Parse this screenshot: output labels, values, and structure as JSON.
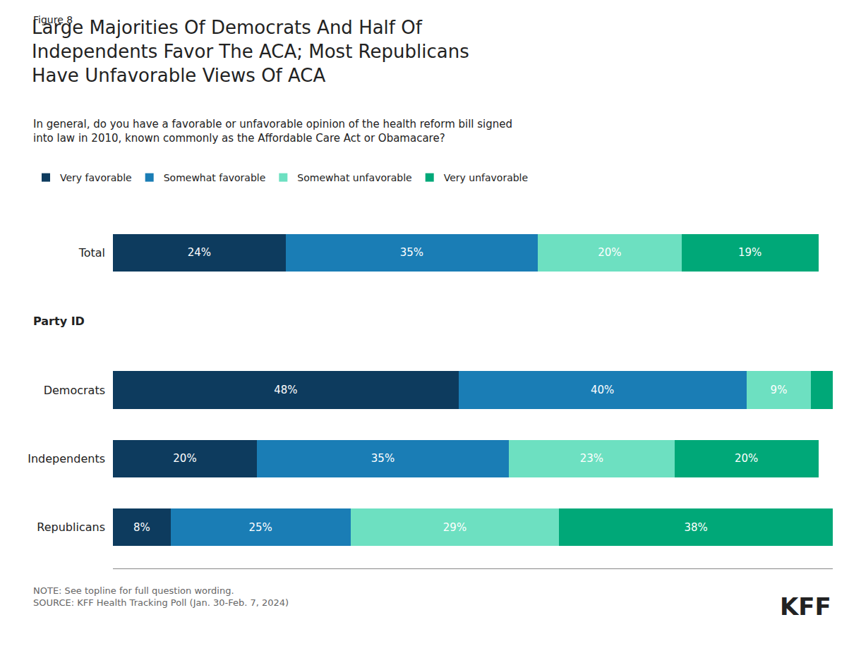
{
  "chart_data": {
    "type": "bar",
    "orientation": "horizontal",
    "stacked": true,
    "title": "Large Majorities Of Democrats And Half Of\nIndependents Favor The ACA; Most Republicans\nHave Unfavorable Views Of ACA",
    "subtitle": "In general, do you have a favorable or unfavorable opinion of the health reform bill signed\ninto law in 2010, known commonly as the Affordable Care Act or Obamacare?",
    "annotations": [
      "Figure 8",
      "Party ID",
      "NOTE: See topline for full question wording.\nSOURCE: KFF Health Tracking Poll (Jan. 30-Feb. 7, 2024)",
      "KFF"
    ],
    "categories": [
      "Total",
      "Democrats",
      "Independents",
      "Republicans"
    ],
    "series": [
      {
        "name": "Very favorable",
        "color": "#0d3b5e",
        "values": [
          24,
          48,
          20,
          8
        ],
        "value_labels": [
          "24%",
          "48%",
          "20%",
          "8%"
        ]
      },
      {
        "name": "Somewhat favorable",
        "color": "#1a7db5",
        "values": [
          35,
          40,
          35,
          25
        ],
        "value_labels": [
          "35%",
          "40%",
          "35%",
          "25%"
        ]
      },
      {
        "name": "Somewhat unfavorable",
        "color": "#6de0c1",
        "values": [
          20,
          9,
          23,
          29
        ],
        "value_labels": [
          "20%",
          "9%",
          "23%",
          "29%"
        ]
      },
      {
        "name": "Very unfavorable",
        "color": "#00a878",
        "values": [
          19,
          3,
          20,
          38
        ],
        "value_labels": [
          "19%",
          null,
          "20%",
          "38%"
        ]
      }
    ],
    "xlim": [
      0,
      100
    ],
    "data_labels": true,
    "tick_labels": "y",
    "grid": false,
    "legend": "top"
  }
}
